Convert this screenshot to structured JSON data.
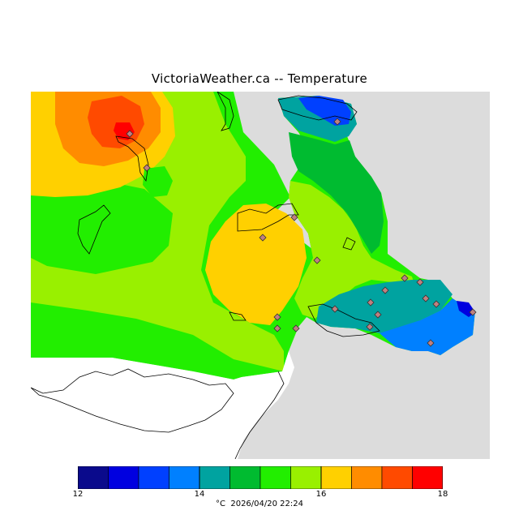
{
  "title": "VictoriaWeather.ca -- Temperature",
  "legend": {
    "min": 12,
    "max": 18,
    "tick_labels": [
      "12",
      "14",
      "16",
      "18"
    ],
    "band_colors": [
      "#0a0a8c",
      "#0000e0",
      "#0040ff",
      "#0080ff",
      "#00a3a0",
      "#00bb30",
      "#22ee00",
      "#99f000",
      "#ffd000",
      "#ff8c00",
      "#ff4a00",
      "#ff0000"
    ]
  },
  "footer": {
    "unit": "°C",
    "timestamp": "2026/04/20 22:24"
  },
  "colors": {
    "land_no_data": "#dcdcdc",
    "water": "#ffffff",
    "station_marker": "#c08080"
  },
  "stations": [
    {
      "id": "s1"
    },
    {
      "id": "s2"
    },
    {
      "id": "s3"
    },
    {
      "id": "s4"
    },
    {
      "id": "s5"
    },
    {
      "id": "s6"
    },
    {
      "id": "s7"
    },
    {
      "id": "s8"
    },
    {
      "id": "s9"
    },
    {
      "id": "s10"
    },
    {
      "id": "s11"
    },
    {
      "id": "s12"
    },
    {
      "id": "s13"
    },
    {
      "id": "s14"
    },
    {
      "id": "s15"
    },
    {
      "id": "s16"
    },
    {
      "id": "s17"
    },
    {
      "id": "s18"
    },
    {
      "id": "s19"
    },
    {
      "id": "s20"
    }
  ]
}
